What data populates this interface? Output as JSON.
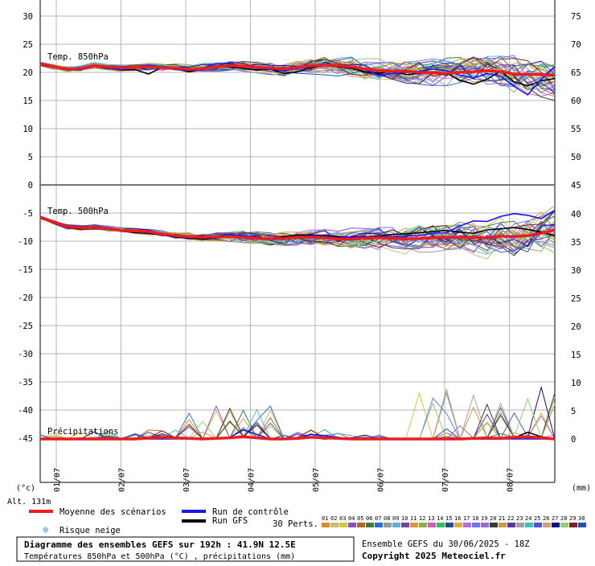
{
  "chart_data": {
    "type": "line",
    "x_labels": [
      "01/07",
      "02/07",
      "03/07",
      "04/07",
      "05/07",
      "06/07",
      "07/07",
      "08/07"
    ],
    "left_ticks": [
      30,
      25,
      20,
      15,
      10,
      5,
      0,
      -5,
      -10,
      -15,
      -20,
      -25,
      -30,
      -35,
      -40,
      -45
    ],
    "right_ticks_upper": [
      75,
      70,
      65,
      60,
      55,
      50,
      45
    ],
    "right_ticks_lower": [
      40,
      35,
      30,
      25,
      20,
      15,
      10,
      5,
      0
    ],
    "left_unit": "(°c)",
    "right_unit": "(mm)",
    "altitude": "Alt. 131m",
    "panels": {
      "t850": {
        "label": "Temp. 850hPa",
        "ylim": [
          0,
          30
        ],
        "mean": [
          21.5,
          21,
          20.5,
          20.7,
          21.2,
          21,
          20.8,
          20.9,
          21,
          20.8,
          20.8,
          20.5,
          20.7,
          21,
          21.2,
          21.1,
          20.9,
          20.8,
          20.6,
          20.9,
          21.2,
          21.3,
          21.2,
          21,
          20.6,
          20.3,
          20.2,
          20.2,
          20,
          19.9,
          19.8,
          20,
          20.1,
          20.3,
          20.1,
          19.7,
          19.6,
          19.6,
          19.5
        ],
        "control": [
          21.6,
          21,
          20.4,
          20.5,
          21.2,
          20.8,
          20.4,
          20.9,
          21.3,
          20.9,
          20.5,
          20.3,
          20.8,
          21.5,
          21.6,
          21,
          20.7,
          20.6,
          20.3,
          20.7,
          21,
          21.4,
          21.3,
          20.9,
          20.5,
          19.5,
          19.8,
          20,
          20.2,
          20.6,
          20.3,
          19.5,
          19,
          19.8,
          19.3,
          17.5,
          16,
          18.8,
          21
        ],
        "gfs": [
          21.4,
          20.9,
          20.4,
          20.6,
          21.3,
          20.8,
          20.4,
          20.5,
          19.7,
          20.9,
          20.6,
          20.1,
          20.8,
          21.1,
          20.9,
          20.7,
          20.4,
          20.6,
          19.8,
          20.1,
          20.9,
          21.2,
          21,
          20.7,
          20.1,
          19.8,
          20.3,
          19.6,
          19.8,
          20.1,
          19.9,
          18.6,
          17.9,
          18.8,
          20.2,
          18.3,
          17.6,
          18.5,
          18.9
        ]
      },
      "t500": {
        "label": "Temp. 500hPa",
        "ylim": [
          -50,
          0
        ],
        "mean": [
          -5.8,
          -6.6,
          -7.4,
          -7.6,
          -7.5,
          -7.8,
          -8.1,
          -8.2,
          -8.3,
          -8.7,
          -9,
          -9.2,
          -9.3,
          -9.2,
          -9.2,
          -9.3,
          -9.5,
          -9.6,
          -9.5,
          -9.3,
          -9.3,
          -9.4,
          -9.6,
          -9.6,
          -9.5,
          -9.4,
          -9.5,
          -9.6,
          -9.5,
          -9.4,
          -9.3,
          -9.3,
          -9.4,
          -9.4,
          -9.1,
          -9.2,
          -9,
          -8.6,
          -8
        ],
        "control": [
          -5.6,
          -6.5,
          -7.2,
          -7.4,
          -7.4,
          -7.6,
          -8,
          -8.3,
          -8.4,
          -8.9,
          -9.1,
          -9.4,
          -9.3,
          -9.1,
          -8.8,
          -9,
          -9.3,
          -9.6,
          -9.7,
          -9.2,
          -9,
          -9.1,
          -9.4,
          -9.2,
          -9.3,
          -9.2,
          -9.2,
          -9.1,
          -9,
          -8.6,
          -8.5,
          -7.3,
          -6.4,
          -6.5,
          -5.6,
          -5.1,
          -5.4,
          -6,
          -4.5
        ],
        "gfs": [
          -5.8,
          -6.8,
          -7.6,
          -7.8,
          -7.6,
          -7.8,
          -8.2,
          -8.5,
          -8.6,
          -8.9,
          -9.2,
          -9.5,
          -9.6,
          -9.4,
          -9.2,
          -9.3,
          -9.4,
          -9.6,
          -9.2,
          -8.9,
          -8.9,
          -9,
          -9.2,
          -9.3,
          -9.2,
          -9.1,
          -8.8,
          -8.7,
          -8.5,
          -8.3,
          -8.1,
          -8.4,
          -8.6,
          -8,
          -7.8,
          -7.6,
          -7.9,
          -8.4,
          -9
        ]
      },
      "precip": {
        "label": "Précipitations",
        "ylim": [
          0,
          45
        ],
        "mean": [
          0,
          0,
          0,
          0,
          0,
          0,
          0,
          0,
          0.2,
          0.3,
          0.2,
          0.1,
          0,
          0.1,
          0.2,
          0.4,
          0.2,
          0,
          0,
          0.1,
          0.3,
          0.2,
          0.1,
          0,
          0,
          0,
          0,
          0,
          0,
          0,
          0,
          0,
          0.1,
          0.2,
          0.1,
          0.3,
          0.4,
          0.2,
          0
        ],
        "control": [
          0,
          0,
          0,
          0,
          0,
          0,
          0,
          0,
          0,
          0,
          0,
          0,
          0,
          0,
          0.3,
          1.6,
          0.8,
          0,
          0,
          0.2,
          0.8,
          0.6,
          0.3,
          0,
          0,
          0,
          0,
          0,
          0,
          0,
          0,
          0,
          0,
          0,
          0,
          0,
          0,
          0,
          0
        ],
        "gfs": [
          0,
          0,
          0,
          0,
          0,
          0,
          0,
          0,
          0.2,
          0,
          0.3,
          0,
          0,
          0,
          0.2,
          0.5,
          0.1,
          0,
          0,
          0,
          0.3,
          0,
          0.1,
          0,
          0,
          0,
          0,
          0,
          0,
          0,
          0,
          0,
          0,
          0,
          0,
          0.2,
          1.2,
          0.4,
          0
        ]
      }
    },
    "legend": {
      "mean": "Moyenne des scénarios",
      "control": "Run de contrôle",
      "gfs": "Run GFS",
      "snow": "Risque neige",
      "perts": "30 Perts.",
      "pert_numbers": [
        "01",
        "02",
        "03",
        "04",
        "05",
        "06",
        "07",
        "08",
        "09",
        "10",
        "11",
        "12",
        "13",
        "14",
        "15",
        "16",
        "17",
        "18",
        "19",
        "20",
        "21",
        "22",
        "23",
        "24",
        "25",
        "26",
        "27",
        "28",
        "29",
        "30"
      ]
    },
    "title": "Diagramme des ensembles GEFS sur 192h : 41.9N 12.5E",
    "subtitle": "Températures 850hPa et 500hPa (°C) , précipitations (mm)",
    "run_info": "Ensemble GEFS du 30/06/2025 - 18Z",
    "copyright": "Copyright 2025 Meteociel.fr"
  },
  "colors": {
    "mean": "#ee1c1c",
    "control": "#1515ee",
    "gfs": "#000000",
    "grid": "#b4b4b4",
    "snow": "#4aa3d6",
    "members": [
      "#e08a2c",
      "#c2c26b",
      "#d9c43b",
      "#8a4fc1",
      "#b5651d",
      "#3c7f3c",
      "#2a6fd9",
      "#999999",
      "#5fb3d9",
      "#7a3f9a",
      "#d49a3a",
      "#8fb040",
      "#c85fbe",
      "#2fbf5f",
      "#1f4f8f",
      "#dcb03a",
      "#b070d8",
      "#7070ff",
      "#9a6ad4",
      "#3a3a3a",
      "#c89c4a",
      "#6a2fa0",
      "#a0a0a0",
      "#40c0c0",
      "#5050d0",
      "#d0a070",
      "#101080",
      "#90d070",
      "#802020",
      "#2050b0"
    ]
  }
}
